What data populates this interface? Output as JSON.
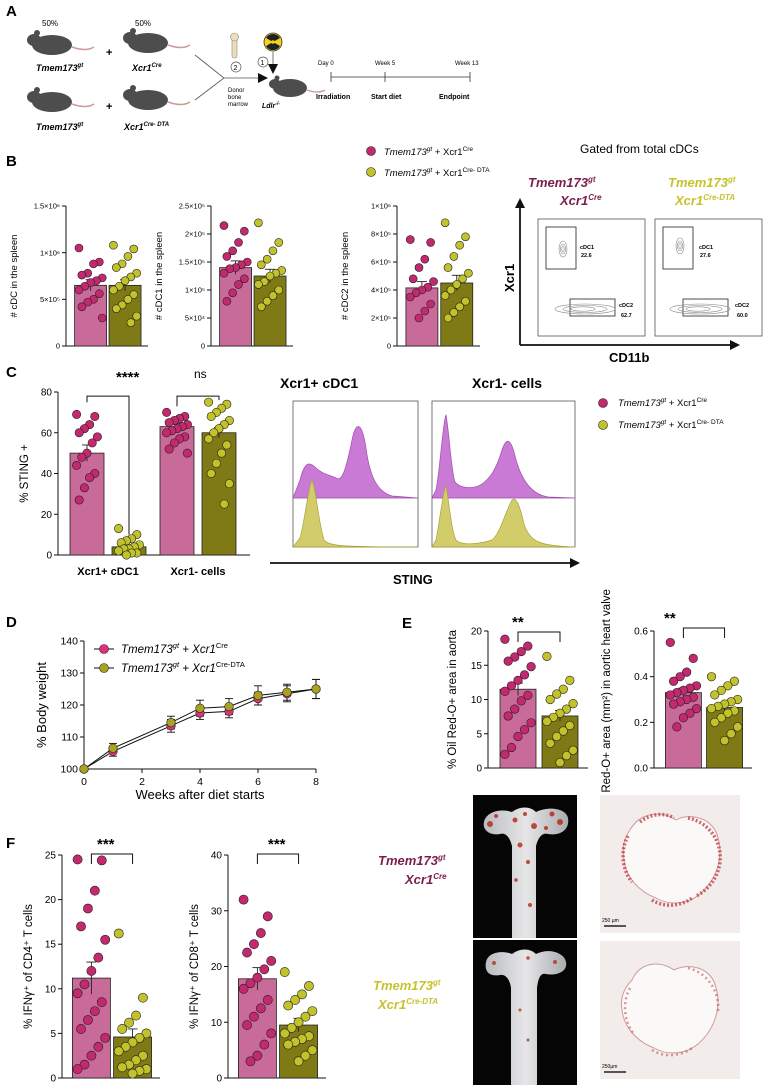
{
  "colors": {
    "pink": "#c96b98",
    "pink_dot": "#c4286f",
    "olive": "#7f7a16",
    "olive_dot": "#c2c22a",
    "wine": "#7a1f4c",
    "mustard": "#c8c22a",
    "magenta_fill": "#c97ad4",
    "yellow_fill": "#d2cc6a"
  },
  "panel_letters": {
    "a": "A",
    "b": "B",
    "c": "C",
    "d": "D",
    "e": "E",
    "f": "F"
  },
  "panel_a": {
    "pct_left": "50%",
    "pct_right": "50%",
    "mouse1": "Tmem173",
    "mouse1_sup": "gt",
    "mouse2": "Xcr1",
    "mouse2_sup": "Cre",
    "mouse3": "Tmem173",
    "mouse3_sup": "gt",
    "mouse4": "Xcr1",
    "mouse4_sup": "Cre- DTA",
    "plus": "+",
    "donor": [
      "Donor",
      "bone",
      "marrow"
    ],
    "step1": "1",
    "step2": "2",
    "recipient": "Ldlr",
    "recipient_sup": "-/-",
    "timeline_labels": [
      "Day 0",
      "Week 5",
      "Week 13"
    ],
    "timeline_events": [
      "Irradiation",
      "Start diet",
      "Endpoint"
    ]
  },
  "legend_bc": {
    "g1": "Tmem173",
    "g1_sup": "gt",
    "g1_tail": " + Xcr1",
    "g1_tail_sup": "Cre",
    "g2": "Tmem173",
    "g2_sup": "gt",
    "g2_tail": " + Xcr1",
    "g2_tail_sup": "Cre- DTA"
  },
  "legend_d": {
    "g1": "Tmem173",
    "g1_sup": "gt",
    "g1_tail": " + Xcr1",
    "g1_tail_sup": "Cre",
    "g2": "Tmem173",
    "g2_sup": "gt",
    "g2_tail": " + Xcr1",
    "g2_tail_sup": "Cre-DTA"
  },
  "gated_title": "Gated from total cDCs",
  "group_labels": {
    "wt_line1": "Tmem173",
    "wt_sup": "gt",
    "wt_line2": "Xcr1",
    "wt_line2_sup": "Cre",
    "ko_line1": "Tmem173",
    "ko_sup": "gt",
    "ko_line2": "Xcr1",
    "ko_line2_sup": "Cre-DTA"
  },
  "flow": {
    "yaxis": "Xcr1",
    "xaxis": "CD11b",
    "left": {
      "gate1": "cDC1",
      "val1": "22.6",
      "gate2": "cDC2",
      "val2": "62.7"
    },
    "right": {
      "gate1": "cDC1",
      "val1": "27.6",
      "gate2": "cDC2",
      "val2": "60.0"
    }
  },
  "histograms": {
    "title_left": "Xcr1+ cDC1",
    "title_right": "Xcr1- cells",
    "xlabel": "STING"
  },
  "sig": {
    "c_left": "****",
    "c_right": "ns",
    "e_left": "**",
    "e_right": "**",
    "f_left": "***",
    "f_right": "***"
  },
  "chart_data": [
    {
      "id": "b1",
      "type": "bar",
      "ylabel": "# cDC in the spleen",
      "yticks": [
        "0",
        "5×10⁵",
        "1×10⁶",
        "1.5×10⁶"
      ],
      "ylim": [
        0,
        1500000
      ],
      "categories": [
        "Tmem173gt + Xcr1Cre",
        "Tmem173gt + Xcr1Cre-DTA"
      ],
      "values": [
        650000,
        650000
      ],
      "errors": [
        60000,
        60000
      ],
      "points": [
        [
          1050000,
          900000,
          880000,
          780000,
          760000,
          730000,
          700000,
          680000,
          640000,
          600000,
          560000,
          500000,
          470000,
          420000,
          300000
        ],
        [
          1080000,
          1040000,
          960000,
          880000,
          840000,
          780000,
          740000,
          700000,
          640000,
          600000,
          550000,
          500000,
          440000,
          400000,
          320000,
          250000
        ]
      ]
    },
    {
      "id": "b2",
      "type": "bar",
      "ylabel": "# cDC1 in the spleen",
      "yticks": [
        "0",
        "5×10⁴",
        "1×10⁵",
        "1.5×10⁵",
        "2×10⁵",
        "2.5×10⁵"
      ],
      "ylim": [
        0,
        250000
      ],
      "categories": [
        "Tmem173gt + Xcr1Cre",
        "Tmem173gt + Xcr1Cre-DTA"
      ],
      "values": [
        140000,
        125000
      ],
      "errors": [
        12000,
        12000
      ],
      "points": [
        [
          215000,
          205000,
          185000,
          170000,
          160000,
          150000,
          145000,
          140000,
          138000,
          130000,
          120000,
          110000,
          95000,
          80000
        ],
        [
          220000,
          185000,
          170000,
          155000,
          145000,
          135000,
          130000,
          125000,
          115000,
          110000,
          100000,
          90000,
          80000,
          70000
        ]
      ]
    },
    {
      "id": "b3",
      "type": "bar",
      "ylabel": "# cDC2 in the spleen",
      "yticks": [
        "0",
        "2×10⁵",
        "4×10⁵",
        "6×10⁵",
        "8×10⁵",
        "1×10⁶"
      ],
      "ylim": [
        0,
        1000000
      ],
      "categories": [
        "Tmem173gt + Xcr1Cre",
        "Tmem173gt + Xcr1Cre-DTA"
      ],
      "values": [
        415000,
        450000
      ],
      "errors": [
        45000,
        55000
      ],
      "points": [
        [
          760000,
          740000,
          620000,
          560000,
          480000,
          460000,
          420000,
          400000,
          380000,
          350000,
          300000,
          250000,
          200000
        ],
        [
          880000,
          780000,
          720000,
          640000,
          560000,
          520000,
          480000,
          440000,
          400000,
          360000,
          320000,
          280000,
          240000,
          200000
        ]
      ]
    },
    {
      "id": "c",
      "type": "bar",
      "ylabel": "% STING +",
      "yticks": [
        "0",
        "20",
        "40",
        "60",
        "80"
      ],
      "ylim": [
        0,
        80
      ],
      "categories": [
        "Xcr1+ cDC1",
        "Xcr1- cells"
      ],
      "series": [
        {
          "name": "Tmem173gt + Xcr1Cre",
          "values": [
            50,
            63
          ],
          "errors": [
            4,
            1.5
          ]
        },
        {
          "name": "Tmem173gt + Xcr1Cre-DTA",
          "values": [
            4,
            60
          ],
          "errors": [
            1,
            2.5
          ]
        }
      ],
      "points": [
        [
          [
            69,
            68,
            64,
            62,
            60,
            58,
            55,
            50,
            48,
            44,
            40,
            38,
            33,
            27
          ],
          [
            13,
            10,
            8,
            7,
            6,
            5,
            4,
            3,
            3,
            2,
            1,
            1,
            0
          ]
        ],
        [
          [
            70,
            68,
            67,
            66,
            65,
            64,
            63,
            62,
            61,
            60,
            58,
            57,
            55,
            52,
            50
          ],
          [
            75,
            74,
            72,
            70,
            68,
            66,
            64,
            62,
            60,
            57,
            54,
            50,
            45,
            40,
            35,
            25
          ]
        ]
      ]
    },
    {
      "id": "d",
      "type": "line",
      "xlabel": "Weeks after diet starts",
      "ylabel": "% Body weight",
      "xticks": [
        "0",
        "2",
        "4",
        "6",
        "8"
      ],
      "yticks": [
        "100",
        "110",
        "120",
        "130",
        "140"
      ],
      "xlim": [
        0,
        8
      ],
      "ylim": [
        100,
        140
      ],
      "x": [
        0,
        1,
        3,
        4,
        5,
        6,
        7,
        8
      ],
      "series": [
        {
          "name": "Tmem173gt + Xcr1Cre",
          "values": [
            100,
            105.5,
            113.5,
            117.5,
            118,
            122,
            123.5,
            125
          ],
          "errors": [
            0,
            1.5,
            2,
            2,
            2,
            2,
            2.5,
            3
          ]
        },
        {
          "name": "Tmem173gt + Xcr1Cre-DTA",
          "values": [
            100,
            106.5,
            114.5,
            119,
            119.5,
            123,
            124,
            125
          ],
          "errors": [
            0,
            1.5,
            2,
            2.5,
            2.5,
            3,
            2.5,
            3
          ]
        }
      ]
    },
    {
      "id": "e1",
      "type": "bar",
      "ylabel": "% Oil Red-O+ area in aorta",
      "yticks": [
        "0",
        "5",
        "10",
        "15",
        "20"
      ],
      "ylim": [
        0,
        20
      ],
      "categories": [
        "Tmem173gt + Xcr1Cre",
        "Tmem173gt + Xcr1Cre-DTA"
      ],
      "values": [
        11.5,
        7.6
      ],
      "errors": [
        0.9,
        0.8
      ],
      "points": [
        [
          18.8,
          17.8,
          17.0,
          16.2,
          15.6,
          14.8,
          13.6,
          12.8,
          12.0,
          11.2,
          10.6,
          9.8,
          8.6,
          7.6,
          6.6,
          5.6,
          4.6,
          3.0,
          2.0
        ],
        [
          16.3,
          12.8,
          11.5,
          10.8,
          10.0,
          9.4,
          8.6,
          8.0,
          7.4,
          6.8,
          6.2,
          5.4,
          4.6,
          3.6,
          2.6,
          1.8,
          0.8
        ]
      ]
    },
    {
      "id": "e2",
      "type": "bar",
      "ylabel": "Oil Red-O+ area (mm²) in aortic heart valve",
      "yticks": [
        "0.0",
        "0.2",
        "0.4",
        "0.6"
      ],
      "ylim": [
        0,
        0.6
      ],
      "categories": [
        "Tmem173gt + Xcr1Cre",
        "Tmem173gt + Xcr1Cre-DTA"
      ],
      "values": [
        0.33,
        0.265
      ],
      "errors": [
        0.02,
        0.02
      ],
      "points": [
        [
          0.55,
          0.48,
          0.42,
          0.4,
          0.38,
          0.36,
          0.35,
          0.34,
          0.33,
          0.32,
          0.31,
          0.3,
          0.29,
          0.28,
          0.26,
          0.24,
          0.22,
          0.18
        ],
        [
          0.4,
          0.38,
          0.36,
          0.34,
          0.32,
          0.3,
          0.29,
          0.28,
          0.27,
          0.26,
          0.25,
          0.24,
          0.22,
          0.2,
          0.18,
          0.15,
          0.12
        ]
      ]
    },
    {
      "id": "f1",
      "type": "bar",
      "ylabel": "% IFNγ⁺ of CD4⁺ T cells",
      "yticks": [
        "0",
        "5",
        "10",
        "15",
        "20",
        "25"
      ],
      "ylim": [
        0,
        25
      ],
      "categories": [
        "Tmem173gt + Xcr1Cre",
        "Tmem173gt + Xcr1Cre-DTA"
      ],
      "values": [
        11.2,
        4.6
      ],
      "errors": [
        1.8,
        0.9
      ],
      "points": [
        [
          24.5,
          24.4,
          21.0,
          19.0,
          17.0,
          15.5,
          13.5,
          12.0,
          10.5,
          9.5,
          8.5,
          7.5,
          6.5,
          5.5,
          4.5,
          3.5,
          2.5,
          1.5,
          1.0
        ],
        [
          16.2,
          9.0,
          7.0,
          6.2,
          5.5,
          5.0,
          4.5,
          4.0,
          3.5,
          3.0,
          2.5,
          2.0,
          1.5,
          1.2,
          1.0,
          0.8,
          0.5
        ]
      ]
    },
    {
      "id": "f2",
      "type": "bar",
      "ylabel": "% IFNγ⁺ of CD8⁺ T cells",
      "yticks": [
        "0",
        "10",
        "20",
        "30",
        "40"
      ],
      "ylim": [
        0,
        40
      ],
      "categories": [
        "Tmem173gt + Xcr1Cre",
        "Tmem173gt + Xcr1Cre-DTA"
      ],
      "values": [
        17.8,
        9.5
      ],
      "errors": [
        2.0,
        1.2
      ],
      "points": [
        [
          32,
          29,
          26,
          24,
          22.5,
          21,
          19.5,
          18,
          17,
          16,
          14,
          12.5,
          11,
          9.5,
          8,
          6,
          4,
          3
        ],
        [
          19,
          16.5,
          15,
          14,
          13,
          12,
          11,
          10,
          9,
          8,
          7.5,
          7,
          6.5,
          6,
          5,
          4,
          3
        ]
      ]
    }
  ],
  "scale_bars": {
    "top": "250 µm",
    "bottom": "250µm"
  }
}
